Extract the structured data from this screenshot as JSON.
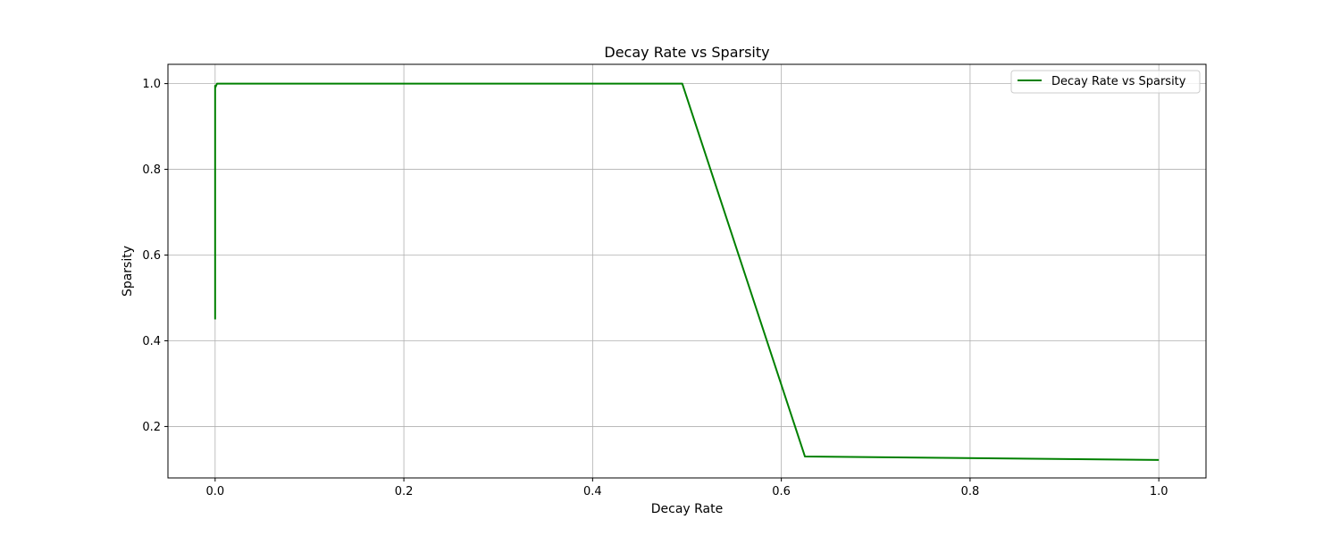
{
  "chart_data": {
    "type": "line",
    "title": "Decay Rate vs Sparsity",
    "xlabel": "Decay Rate",
    "ylabel": "Sparsity",
    "xlim": [
      -0.05,
      1.05
    ],
    "ylim": [
      0.08,
      1.045
    ],
    "xticks": [
      0.0,
      0.2,
      0.4,
      0.6,
      0.8,
      1.0
    ],
    "xtick_labels": [
      "0.0",
      "0.2",
      "0.4",
      "0.6",
      "0.8",
      "1.0"
    ],
    "yticks": [
      0.2,
      0.4,
      0.6,
      0.8,
      1.0
    ],
    "ytick_labels": [
      "0.2",
      "0.4",
      "0.6",
      "0.8",
      "1.0"
    ],
    "grid": true,
    "legend_position": "top-right",
    "series": [
      {
        "name": "Decay Rate vs Sparsity",
        "color": "#008000",
        "x": [
          0.0,
          0.0,
          0.0,
          0.0,
          0.0,
          0.0,
          0.0,
          0.0,
          0.002,
          0.495,
          0.625,
          1.0
        ],
        "y": [
          0.45,
          0.49,
          0.46,
          0.66,
          0.96,
          0.98,
          0.995,
          0.99,
          1.0,
          1.0,
          0.13,
          0.122
        ]
      }
    ]
  }
}
